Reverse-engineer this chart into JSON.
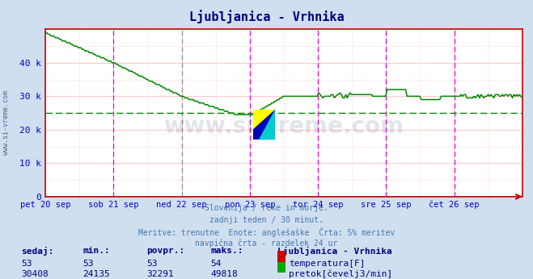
{
  "title": "Ljubljanica - Vrhnika",
  "title_color": "#000080",
  "bg_color": "#d0dff0",
  "plot_bg_color": "#ffffff",
  "xlabel_ticks": [
    "pet 20 sep",
    "sob 21 sep",
    "ned 22 sep",
    "pon 23 sep",
    "tor 24 sep",
    "sre 25 sep",
    "čet 26 sep"
  ],
  "ylabel_ticks": [
    0,
    10000,
    20000,
    30000,
    40000
  ],
  "ylabel_labels": [
    "0",
    "10 k",
    "20 k",
    "30 k",
    "40 k"
  ],
  "ylim": [
    0,
    50000
  ],
  "grid_h_color": "#ffbbbb",
  "grid_v_color": "#ffbbbb",
  "vline_color": "#dd00dd",
  "vline_ned_color": "#888888",
  "hline_avg_color": "#008800",
  "avg_value": 25000,
  "watermark": "www.si-vreme.com",
  "watermark_color": "#1a3a6a",
  "watermark_alpha": 0.13,
  "flow_color": "#008800",
  "temp_color": "#880000",
  "subtitle_lines": [
    "Slovenija / reke in morje.",
    "zadnji teden / 30 minut.",
    "Meritve: trenutne  Enote: anglešaške  Črta: 5% meritev",
    "navpična črta - razdelek 24 ur"
  ],
  "subtitle_color": "#4477aa",
  "table_headers": [
    "sedaj:",
    "min.:",
    "povpr.:",
    "maks.:"
  ],
  "table_header_color": "#000080",
  "table_value_color": "#000080",
  "row1_values": [
    "53",
    "53",
    "53",
    "54"
  ],
  "row2_values": [
    "30408",
    "24135",
    "32291",
    "49818"
  ],
  "legend_title": "Ljubljanica - Vrhnika",
  "legend_items": [
    "temperatura[F]",
    "pretok[čevelj3/min]"
  ],
  "legend_colors": [
    "#cc0000",
    "#00aa00"
  ],
  "yaxis_label_color": "#0000cc",
  "tick_color": "#0000cc",
  "side_label": "www.si-vreme.com",
  "spine_color": "#cc0000",
  "arrow_color": "#cc0000"
}
